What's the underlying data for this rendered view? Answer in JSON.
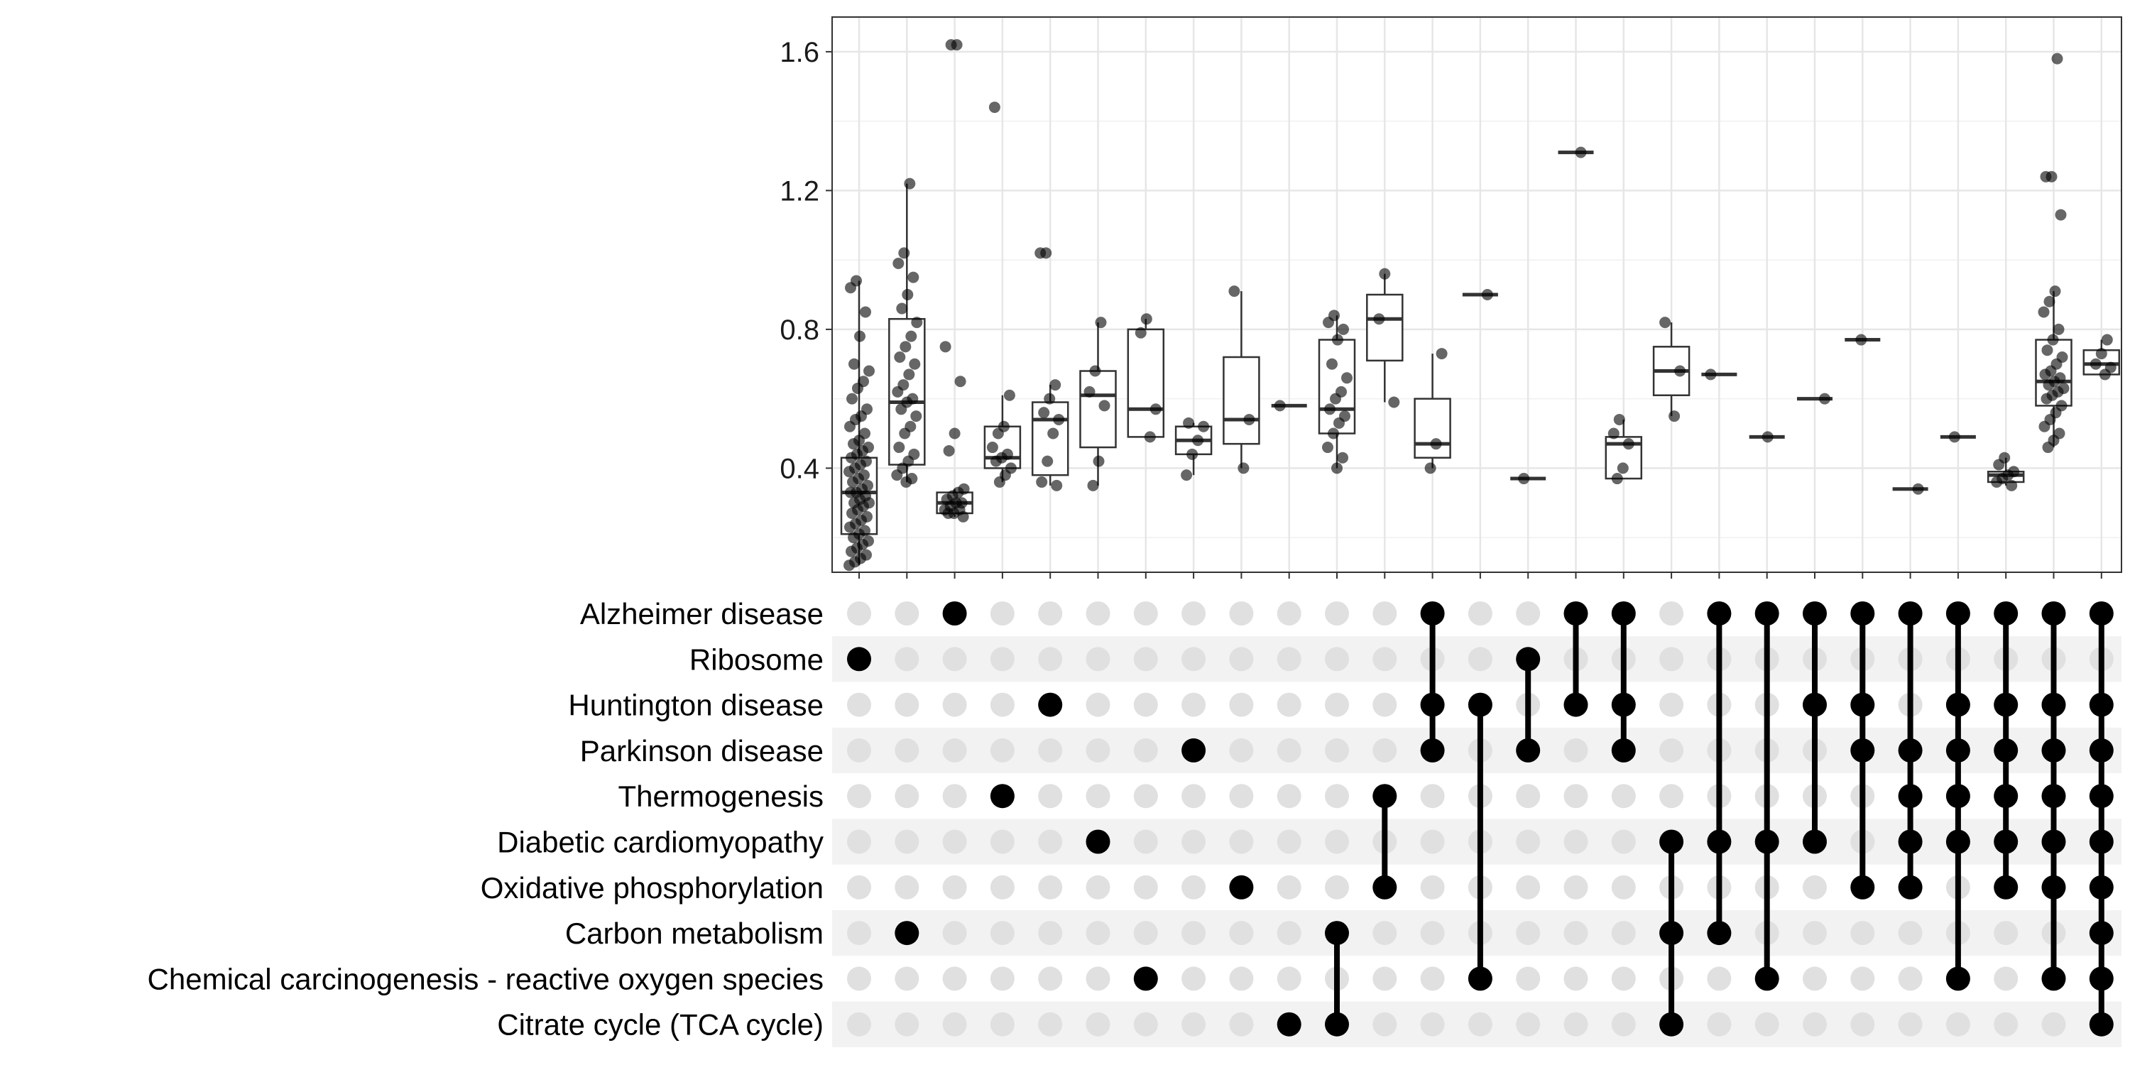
{
  "chart_data": [
    {
      "type": "box",
      "ylim": [
        0.1,
        1.7
      ],
      "yticks": [
        0.4,
        0.8,
        1.2,
        1.6
      ],
      "ytick_labels": [
        "0.4",
        "0.8",
        "1.2",
        "1.6"
      ],
      "grid": true,
      "boxes": [
        {
          "q1": 0.21,
          "median": 0.33,
          "q3": 0.43,
          "whisker_low": 0.12,
          "whisker_high": 0.94,
          "points": [
            0.12,
            0.13,
            0.14,
            0.15,
            0.16,
            0.17,
            0.18,
            0.19,
            0.2,
            0.21,
            0.22,
            0.23,
            0.24,
            0.25,
            0.26,
            0.27,
            0.28,
            0.29,
            0.3,
            0.3,
            0.31,
            0.32,
            0.33,
            0.33,
            0.34,
            0.35,
            0.36,
            0.37,
            0.38,
            0.39,
            0.4,
            0.41,
            0.42,
            0.43,
            0.44,
            0.45,
            0.46,
            0.47,
            0.48,
            0.5,
            0.52,
            0.54,
            0.55,
            0.57,
            0.6,
            0.63,
            0.65,
            0.68,
            0.7,
            0.78,
            0.85,
            0.92,
            0.94
          ]
        },
        {
          "q1": 0.41,
          "median": 0.59,
          "q3": 0.83,
          "whisker_low": 0.36,
          "whisker_high": 1.22,
          "points": [
            0.36,
            0.37,
            0.38,
            0.4,
            0.42,
            0.44,
            0.46,
            0.5,
            0.52,
            0.55,
            0.57,
            0.59,
            0.6,
            0.62,
            0.64,
            0.67,
            0.7,
            0.72,
            0.75,
            0.78,
            0.82,
            0.86,
            0.9,
            0.95,
            0.99,
            1.02,
            1.22
          ]
        },
        {
          "q1": 0.27,
          "median": 0.3,
          "q3": 0.33,
          "whisker_low": 0.26,
          "whisker_high": 0.34,
          "points": [
            0.26,
            0.27,
            0.27,
            0.28,
            0.28,
            0.29,
            0.3,
            0.3,
            0.31,
            0.32,
            0.33,
            0.34,
            0.45,
            0.5,
            0.65,
            0.75,
            1.62,
            1.62
          ]
        },
        {
          "q1": 0.4,
          "median": 0.43,
          "q3": 0.52,
          "whisker_low": 0.36,
          "whisker_high": 0.61,
          "points": [
            0.36,
            0.38,
            0.4,
            0.42,
            0.43,
            0.44,
            0.46,
            0.5,
            0.52,
            0.61,
            1.44
          ]
        },
        {
          "q1": 0.38,
          "median": 0.54,
          "q3": 0.59,
          "whisker_low": 0.35,
          "whisker_high": 0.64,
          "points": [
            0.35,
            0.36,
            0.42,
            0.5,
            0.54,
            0.56,
            0.6,
            0.64,
            1.02,
            1.02
          ]
        },
        {
          "q1": 0.46,
          "median": 0.61,
          "q3": 0.68,
          "whisker_low": 0.35,
          "whisker_high": 0.82,
          "points": [
            0.35,
            0.42,
            0.58,
            0.62,
            0.68,
            0.82
          ]
        },
        {
          "q1": 0.49,
          "median": 0.57,
          "q3": 0.8,
          "whisker_low": 0.49,
          "whisker_high": 0.83,
          "points": [
            0.49,
            0.57,
            0.79,
            0.83
          ]
        },
        {
          "q1": 0.44,
          "median": 0.48,
          "q3": 0.52,
          "whisker_low": 0.38,
          "whisker_high": 0.53,
          "points": [
            0.38,
            0.44,
            0.48,
            0.52,
            0.53
          ]
        },
        {
          "q1": 0.47,
          "median": 0.54,
          "q3": 0.72,
          "whisker_low": 0.4,
          "whisker_high": 0.91,
          "points": [
            0.4,
            0.54,
            0.91
          ]
        },
        {
          "q1": 0.58,
          "median": 0.58,
          "q3": 0.58,
          "whisker_low": 0.58,
          "whisker_high": 0.58,
          "points": [
            0.58
          ]
        },
        {
          "q1": 0.5,
          "median": 0.57,
          "q3": 0.77,
          "whisker_low": 0.4,
          "whisker_high": 0.84,
          "points": [
            0.4,
            0.43,
            0.46,
            0.5,
            0.53,
            0.55,
            0.57,
            0.6,
            0.62,
            0.66,
            0.7,
            0.77,
            0.8,
            0.82,
            0.84
          ]
        },
        {
          "q1": 0.71,
          "median": 0.83,
          "q3": 0.9,
          "whisker_low": 0.59,
          "whisker_high": 0.96,
          "points": [
            0.59,
            0.83,
            0.96
          ]
        },
        {
          "q1": 0.43,
          "median": 0.47,
          "q3": 0.6,
          "whisker_low": 0.4,
          "whisker_high": 0.73,
          "points": [
            0.4,
            0.47,
            0.73
          ]
        },
        {
          "q1": 0.9,
          "median": 0.9,
          "q3": 0.9,
          "whisker_low": 0.9,
          "whisker_high": 0.9,
          "points": [
            0.9
          ]
        },
        {
          "q1": 0.37,
          "median": 0.37,
          "q3": 0.37,
          "whisker_low": 0.37,
          "whisker_high": 0.37,
          "points": [
            0.37
          ]
        },
        {
          "q1": 1.31,
          "median": 1.31,
          "q3": 1.31,
          "whisker_low": 1.31,
          "whisker_high": 1.31,
          "points": [
            1.31
          ]
        },
        {
          "q1": 0.37,
          "median": 0.47,
          "q3": 0.49,
          "whisker_low": 0.37,
          "whisker_high": 0.54,
          "points": [
            0.37,
            0.4,
            0.47,
            0.5,
            0.54
          ]
        },
        {
          "q1": 0.61,
          "median": 0.68,
          "q3": 0.75,
          "whisker_low": 0.55,
          "whisker_high": 0.82,
          "points": [
            0.55,
            0.68,
            0.82
          ]
        },
        {
          "q1": 0.67,
          "median": 0.67,
          "q3": 0.67,
          "whisker_low": 0.67,
          "whisker_high": 0.67,
          "points": [
            0.67
          ]
        },
        {
          "q1": 0.49,
          "median": 0.49,
          "q3": 0.49,
          "whisker_low": 0.49,
          "whisker_high": 0.49,
          "points": [
            0.49
          ]
        },
        {
          "q1": 0.6,
          "median": 0.6,
          "q3": 0.6,
          "whisker_low": 0.6,
          "whisker_high": 0.6,
          "points": [
            0.6
          ]
        },
        {
          "q1": 0.77,
          "median": 0.77,
          "q3": 0.77,
          "whisker_low": 0.77,
          "whisker_high": 0.77,
          "points": [
            0.77
          ]
        },
        {
          "q1": 0.34,
          "median": 0.34,
          "q3": 0.34,
          "whisker_low": 0.34,
          "whisker_high": 0.34,
          "points": [
            0.34
          ]
        },
        {
          "q1": 0.49,
          "median": 0.49,
          "q3": 0.49,
          "whisker_low": 0.49,
          "whisker_high": 0.49,
          "points": [
            0.49
          ]
        },
        {
          "q1": 0.36,
          "median": 0.38,
          "q3": 0.39,
          "whisker_low": 0.35,
          "whisker_high": 0.43,
          "points": [
            0.35,
            0.36,
            0.37,
            0.38,
            0.39,
            0.41,
            0.43
          ]
        },
        {
          "q1": 0.58,
          "median": 0.65,
          "q3": 0.77,
          "whisker_low": 0.46,
          "whisker_high": 0.91,
          "points": [
            0.46,
            0.48,
            0.5,
            0.52,
            0.54,
            0.56,
            0.58,
            0.6,
            0.61,
            0.62,
            0.63,
            0.64,
            0.65,
            0.66,
            0.67,
            0.68,
            0.7,
            0.72,
            0.74,
            0.77,
            0.8,
            0.85,
            0.88,
            0.91,
            1.13,
            1.24,
            1.24,
            1.58
          ]
        },
        {
          "q1": 0.67,
          "median": 0.7,
          "q3": 0.74,
          "whisker_low": 0.67,
          "whisker_high": 0.77,
          "points": [
            0.67,
            0.69,
            0.7,
            0.73,
            0.77
          ]
        }
      ]
    },
    {
      "type": "upset-matrix",
      "sets": [
        "Alzheimer disease",
        "Ribosome",
        "Huntington disease",
        "Parkinson disease",
        "Thermogenesis",
        "Diabetic cardiomyopathy",
        "Oxidative phosphorylation",
        "Carbon metabolism",
        "Chemical carcinogenesis - reactive oxygen species",
        "Citrate cycle (TCA cycle)"
      ],
      "intersections": [
        [
          1
        ],
        [
          7
        ],
        [
          0
        ],
        [
          4
        ],
        [
          2
        ],
        [
          5
        ],
        [
          8
        ],
        [
          3
        ],
        [
          6
        ],
        [
          9
        ],
        [
          7,
          9
        ],
        [
          4,
          6
        ],
        [
          0,
          2,
          3
        ],
        [
          2,
          8
        ],
        [
          1,
          3
        ],
        [
          0,
          2
        ],
        [
          0,
          2,
          3
        ],
        [
          5,
          7,
          9
        ],
        [
          0,
          5,
          7
        ],
        [
          0,
          5,
          8
        ],
        [
          0,
          2,
          5
        ],
        [
          0,
          2,
          3,
          6
        ],
        [
          0,
          3,
          4,
          5,
          6
        ],
        [
          0,
          2,
          3,
          4,
          5,
          8
        ],
        [
          0,
          2,
          3,
          4,
          5,
          6
        ],
        [
          0,
          2,
          3,
          4,
          5,
          6,
          8
        ],
        [
          0,
          2,
          3,
          4,
          5,
          6,
          7,
          8,
          9
        ]
      ],
      "colors": {
        "active": "#000000",
        "inactive": "#e0e0e0",
        "stripe": "#f2f2f2"
      }
    }
  ]
}
